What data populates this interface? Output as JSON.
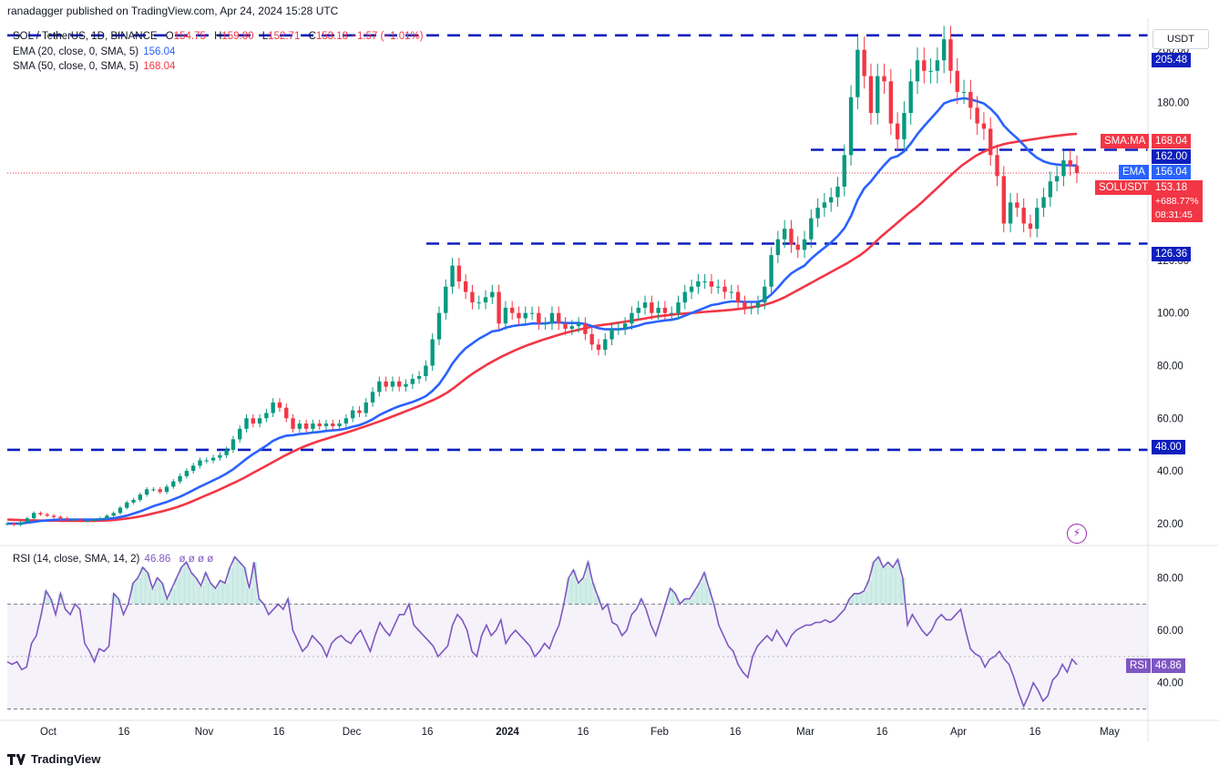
{
  "header": {
    "publisher_line": "ranadagger published on TradingView.com, Apr 24, 2024 15:28 UTC"
  },
  "legend": {
    "symbol": "SOL / TetherUS, 1D, BINANCE",
    "o_label": "O",
    "o": "154.75",
    "h_label": "H",
    "h": "159.80",
    "l_label": "L",
    "l": "152.71",
    "c_label": "C",
    "c": "153.18",
    "change": "−1.57 (−1.01%)",
    "ema_label": "EMA (20, close, 0, SMA, 5)",
    "ema_value": "156.04",
    "sma_label": "SMA (50, close, 0, SMA, 5)",
    "sma_value": "168.04",
    "rsi_label": "RSI (14, close, SMA, 14, 2)",
    "rsi_value": "46.86",
    "rsi_extra": "ø ø ø ø"
  },
  "currency_button": "USDT",
  "price_tags": {
    "level_205": "205.48",
    "sma_label": "SMA:MA",
    "sma_value": "168.04",
    "level_162": "162.00",
    "ema_label": "EMA",
    "ema_value": "156.04",
    "symbol_label": "SOLUSDT",
    "last_price": "153.18",
    "last_change": "+688.77%",
    "countdown": "08:31:45",
    "level_126": "126.36",
    "level_48": "48.00",
    "rsi_label": "RSI",
    "rsi_value": "46.86"
  },
  "footer": {
    "brand": "TradingView"
  },
  "colors": {
    "up": "#089981",
    "down": "#f23645",
    "ema": "#2962ff",
    "sma": "#f23645",
    "level": "#0d1fbd",
    "rsi": "#7e57c2",
    "rsi_band": "#ede7f6"
  },
  "chart_data": [
    {
      "type": "candlestick",
      "title": "SOL / TetherUS, 1D, BINANCE",
      "x_tick_labels": [
        "Oct",
        "16",
        "Nov",
        "16",
        "Dec",
        "16",
        "2024",
        "16",
        "Feb",
        "16",
        "Mar",
        "16",
        "Apr",
        "16",
        "May"
      ],
      "y_tick_labels": [
        "20.00",
        "40.00",
        "60.00",
        "80.00",
        "100.00",
        "120.00",
        "140.00",
        "180.00",
        "200.00"
      ],
      "ylim": [
        12,
        212
      ],
      "horizontal_levels": [
        205.48,
        162.0,
        126.36,
        48.0
      ],
      "series": [
        {
          "name": "SOLUSDT",
          "close": [
            20,
            19.5,
            20.5,
            22,
            24,
            23.5,
            23,
            22.5,
            22,
            21.5,
            21.5,
            21,
            21,
            21.5,
            22,
            23,
            24,
            26,
            28,
            29,
            31,
            33,
            33,
            32,
            34,
            36,
            38,
            40,
            42,
            44,
            44,
            45,
            46,
            48,
            52,
            56,
            60,
            58,
            60,
            62,
            66,
            64,
            60,
            56,
            58,
            56,
            58,
            57,
            58,
            57,
            58,
            60,
            63,
            62,
            66,
            70,
            74,
            72,
            74,
            72,
            73,
            75,
            76,
            80,
            90,
            100,
            110,
            118,
            112,
            108,
            104,
            104,
            106,
            108,
            96,
            102,
            100,
            98,
            100,
            100,
            96,
            96,
            100,
            96,
            94,
            95,
            96,
            92,
            88,
            86,
            90,
            94,
            94,
            96,
            100,
            102,
            104,
            100,
            102,
            100,
            100,
            104,
            108,
            110,
            112,
            112,
            110,
            110,
            108,
            108,
            104,
            102,
            102,
            104,
            110,
            122,
            128,
            132,
            126,
            124,
            128,
            136,
            140,
            142,
            144,
            148,
            160,
            182,
            200,
            190,
            176,
            190,
            188,
            172,
            166,
            176,
            188,
            196,
            192,
            192,
            196,
            204,
            192,
            184,
            184,
            178,
            172,
            170,
            160,
            152,
            134,
            142,
            140,
            134,
            132,
            140,
            144,
            150,
            152,
            158,
            156,
            153.18
          ],
          "ema": [
            20,
            20,
            20,
            20.3,
            20.6,
            21,
            21.2,
            21.4,
            21.5,
            21.5,
            21.5,
            21.5,
            21.5,
            21.5,
            21.6,
            21.8,
            22,
            22.5,
            23,
            23.8,
            24.6,
            25.6,
            26.6,
            27.4,
            28.2,
            29.2,
            30.2,
            31.4,
            32.7,
            34,
            35.2,
            36.4,
            37.6,
            39,
            40.6,
            42.6,
            44.6,
            46.4,
            48,
            49.6,
            51.4,
            52.6,
            53.4,
            53.6,
            54,
            54.2,
            54.6,
            54.8,
            55.2,
            55.4,
            55.6,
            56.1,
            56.8,
            57.4,
            58.4,
            59.6,
            61.2,
            62.4,
            63.6,
            64.6,
            65.4,
            66.2,
            67.2,
            68.4,
            70.4,
            73,
            76.6,
            80.8,
            84,
            86.6,
            88.4,
            90.2,
            91.6,
            93,
            93.4,
            94.4,
            95,
            95.4,
            95.6,
            96,
            96,
            96,
            96.4,
            96.4,
            96.2,
            96.2,
            96.2,
            95.8,
            95,
            94.2,
            93.8,
            93.8,
            93.8,
            94,
            94.6,
            95.2,
            96,
            96.4,
            96.8,
            97.2,
            97.4,
            98,
            99,
            100,
            101,
            102,
            103,
            103.4,
            104,
            104.4,
            104.4,
            104.2,
            104.2,
            104.2,
            105,
            107,
            109.6,
            112.6,
            115,
            116.6,
            118,
            120.6,
            122.8,
            124.8,
            126.8,
            129.2,
            132.2,
            136.8,
            143,
            147.4,
            150,
            153.2,
            156.2,
            158.8,
            159.6,
            161.4,
            164.4,
            168,
            171,
            173.8,
            176.6,
            179.6,
            180.6,
            181.2,
            181.6,
            181.2,
            180.4,
            179.6,
            177.6,
            175,
            171.2,
            168.6,
            166.4,
            163.8,
            161,
            159,
            157.6,
            156.8,
            156.4,
            156.2,
            156.1,
            156.04
          ],
          "sma": [
            21.5,
            21.4,
            21.3,
            21.2,
            21.2,
            21.1,
            21.1,
            21.1,
            21.0,
            21.0,
            21.0,
            21.0,
            21.0,
            21.0,
            21.1,
            21.2,
            21.4,
            21.7,
            22.0,
            22.4,
            22.9,
            23.5,
            24.1,
            24.7,
            25.4,
            26.2,
            27.1,
            28.1,
            29.2,
            30.3,
            31.4,
            32.5,
            33.7,
            34.9,
            36.1,
            37.4,
            38.8,
            40.2,
            41.6,
            43.0,
            44.4,
            45.8,
            47.1,
            48.3,
            49.4,
            50.4,
            51.3,
            52.1,
            52.9,
            53.7,
            54.5,
            55.3,
            56.2,
            57.0,
            57.9,
            58.8,
            59.8,
            60.8,
            61.8,
            62.8,
            63.8,
            64.8,
            65.9,
            67.0,
            68.3,
            69.8,
            71.6,
            73.6,
            75.6,
            77.4,
            79.0,
            80.6,
            82.0,
            83.4,
            84.6,
            85.8,
            86.9,
            87.9,
            88.8,
            89.7,
            90.5,
            91.3,
            92.1,
            92.8,
            93.4,
            94.0,
            94.6,
            95.1,
            95.5,
            95.8,
            96.2,
            96.6,
            97.0,
            97.4,
            97.8,
            98.3,
            98.7,
            99.0,
            99.3,
            99.6,
            99.8,
            100.0,
            100.2,
            100.4,
            100.6,
            100.8,
            101.0,
            101.2,
            101.5,
            101.8,
            102.2,
            102.6,
            103.2,
            104.0,
            105.0,
            106.2,
            107.6,
            109.0,
            110.4,
            111.8,
            113.2,
            114.6,
            116.0,
            117.4,
            118.8,
            120.4,
            122.0,
            124.0,
            126.4,
            128.8,
            131.0,
            133.2,
            135.4,
            137.6,
            139.6,
            141.8,
            144.2,
            146.6,
            149.0,
            151.4,
            153.8,
            156.0,
            157.8,
            159.6,
            161.0,
            162.2,
            163.2,
            164.0,
            164.6,
            165.0,
            165.4,
            165.8,
            166.2,
            166.6,
            167.0,
            167.3,
            167.6,
            167.9,
            168.04
          ]
        }
      ]
    },
    {
      "type": "line",
      "title": "RSI (14, close, SMA, 14, 2)",
      "y_tick_labels": [
        "40.00",
        "60.00",
        "80.00"
      ],
      "ylim": [
        26,
        92
      ],
      "band": [
        30,
        70
      ],
      "middle": 50,
      "series": [
        {
          "name": "RSI",
          "values": [
            48,
            47,
            48,
            45,
            46,
            55,
            58,
            66,
            75,
            72,
            66,
            74,
            68,
            66,
            70,
            68,
            55,
            52,
            48,
            53,
            52,
            54,
            74,
            72,
            66,
            70,
            78,
            80,
            84,
            82,
            76,
            80,
            78,
            72,
            76,
            80,
            84,
            86,
            82,
            80,
            77,
            82,
            78,
            76,
            79,
            78,
            84,
            88,
            86,
            84,
            76,
            86,
            72,
            70,
            66,
            68,
            70,
            68,
            72,
            60,
            56,
            52,
            54,
            58,
            56,
            54,
            50,
            55,
            57,
            58,
            56,
            55,
            58,
            60,
            56,
            52,
            58,
            63,
            60,
            58,
            62,
            66,
            66,
            70,
            62,
            60,
            58,
            56,
            54,
            50,
            52,
            54,
            62,
            66,
            64,
            60,
            52,
            50,
            58,
            62,
            58,
            60,
            64,
            55,
            58,
            60,
            58,
            56,
            54,
            50,
            52,
            55,
            53,
            58,
            62,
            70,
            80,
            83,
            78,
            80,
            86,
            78,
            73,
            68,
            70,
            63,
            62,
            58,
            60,
            66,
            68,
            72,
            68,
            62,
            58,
            64,
            70,
            76,
            74,
            70,
            72,
            72,
            75,
            78,
            82,
            76,
            70,
            62,
            58,
            54,
            52,
            47,
            44,
            42,
            50,
            54,
            56,
            58,
            56,
            60,
            57,
            54,
            58,
            60,
            61,
            62,
            62,
            63,
            63,
            64,
            63,
            64,
            66,
            68,
            72,
            74,
            74,
            75,
            79,
            86,
            88,
            84,
            86,
            84,
            87,
            80,
            62,
            66,
            63,
            60,
            58,
            60,
            64,
            66,
            64,
            64,
            66,
            68,
            60,
            53,
            51,
            50,
            46,
            49,
            50,
            52,
            49,
            47,
            42,
            36,
            31,
            35,
            40,
            37,
            33,
            35,
            41,
            43,
            47,
            44,
            49,
            46.86
          ]
        }
      ]
    }
  ]
}
